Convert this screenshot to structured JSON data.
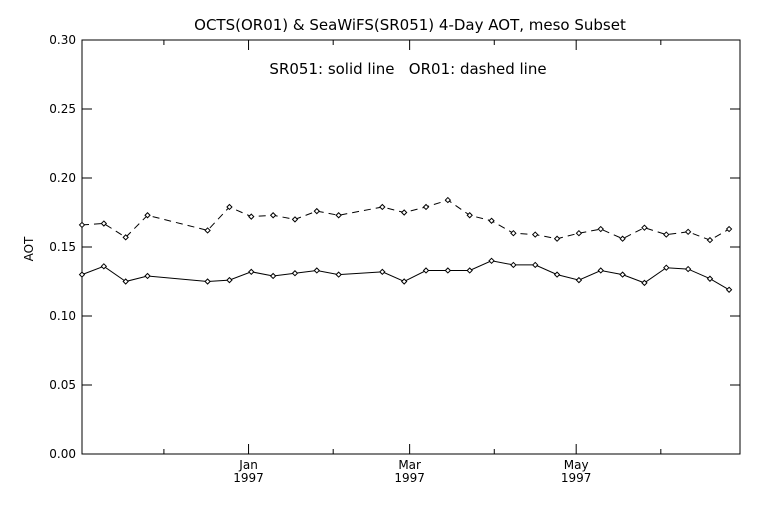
{
  "chart_data": {
    "type": "line",
    "title": "OCTS(OR01) & SeaWiFS(SR051) 4-Day AOT, meso Subset",
    "annotation": "SR051: solid line   OR01: dashed line",
    "ylabel": "AOT",
    "xlabel": "",
    "ylim": [
      0.0,
      0.3
    ],
    "yticks": [
      "0.00",
      "0.05",
      "0.10",
      "0.15",
      "0.20",
      "0.25",
      "0.30"
    ],
    "xlim": [
      "1996-11-01",
      "1997-06-30"
    ],
    "xticks": [
      {
        "month": "Jan",
        "year": "1997",
        "date": "1997-01-01"
      },
      {
        "month": "Mar",
        "year": "1997",
        "date": "1997-03-01"
      },
      {
        "month": "May",
        "year": "1997",
        "date": "1997-05-01"
      }
    ],
    "grid": false,
    "series": [
      {
        "name": "SR051",
        "line_style": "solid",
        "marker": "diamond",
        "color": "#000000",
        "points": [
          [
            "1996-11-01",
            0.13
          ],
          [
            "1996-11-09",
            0.136
          ],
          [
            "1996-11-17",
            0.125
          ],
          [
            "1996-11-25",
            0.129
          ],
          [
            "1996-12-17",
            0.125
          ],
          [
            "1996-12-25",
            0.126
          ],
          [
            "1997-01-02",
            0.132
          ],
          [
            "1997-01-10",
            0.129
          ],
          [
            "1997-01-18",
            0.131
          ],
          [
            "1997-01-26",
            0.133
          ],
          [
            "1997-02-03",
            0.13
          ],
          [
            "1997-02-19",
            0.132
          ],
          [
            "1997-02-27",
            0.125
          ],
          [
            "1997-03-07",
            0.133
          ],
          [
            "1997-03-15",
            0.133
          ],
          [
            "1997-03-23",
            0.133
          ],
          [
            "1997-03-31",
            0.14
          ],
          [
            "1997-04-08",
            0.137
          ],
          [
            "1997-04-16",
            0.137
          ],
          [
            "1997-04-24",
            0.13
          ],
          [
            "1997-05-02",
            0.126
          ],
          [
            "1997-05-10",
            0.133
          ],
          [
            "1997-05-18",
            0.13
          ],
          [
            "1997-05-26",
            0.124
          ],
          [
            "1997-06-03",
            0.135
          ],
          [
            "1997-06-11",
            0.134
          ],
          [
            "1997-06-19",
            0.127
          ],
          [
            "1997-06-26",
            0.119
          ]
        ]
      },
      {
        "name": "OR01",
        "line_style": "dashed",
        "marker": "diamond",
        "color": "#000000",
        "points": [
          [
            "1996-11-01",
            0.166
          ],
          [
            "1996-11-09",
            0.167
          ],
          [
            "1996-11-17",
            0.157
          ],
          [
            "1996-11-25",
            0.173
          ],
          [
            "1996-12-17",
            0.162
          ],
          [
            "1996-12-25",
            0.179
          ],
          [
            "1997-01-02",
            0.172
          ],
          [
            "1997-01-10",
            0.173
          ],
          [
            "1997-01-18",
            0.17
          ],
          [
            "1997-01-26",
            0.176
          ],
          [
            "1997-02-03",
            0.173
          ],
          [
            "1997-02-19",
            0.179
          ],
          [
            "1997-02-27",
            0.175
          ],
          [
            "1997-03-07",
            0.179
          ],
          [
            "1997-03-15",
            0.184
          ],
          [
            "1997-03-23",
            0.173
          ],
          [
            "1997-03-31",
            0.169
          ],
          [
            "1997-04-08",
            0.16
          ],
          [
            "1997-04-16",
            0.159
          ],
          [
            "1997-04-24",
            0.156
          ],
          [
            "1997-05-02",
            0.16
          ],
          [
            "1997-05-10",
            0.163
          ],
          [
            "1997-05-18",
            0.156
          ],
          [
            "1997-05-26",
            0.164
          ],
          [
            "1997-06-03",
            0.159
          ],
          [
            "1997-06-11",
            0.161
          ],
          [
            "1997-06-19",
            0.155
          ],
          [
            "1997-06-26",
            0.163
          ]
        ]
      }
    ]
  }
}
